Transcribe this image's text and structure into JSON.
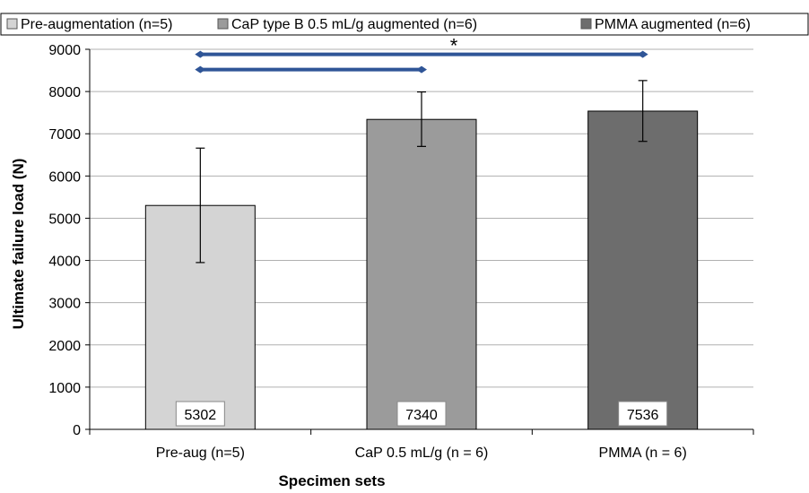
{
  "chart_data": {
    "type": "bar",
    "categories": [
      "Pre-aug (n=5)",
      "CaP 0.5 mL/g (n = 6)",
      "PMMA (n = 6)"
    ],
    "series": [
      {
        "values": [
          5302,
          7340,
          7536
        ],
        "error_low": [
          3950,
          6700,
          6820
        ],
        "error_high": [
          6660,
          7990,
          8260
        ],
        "colors": [
          "#d4d4d4",
          "#9b9b9b",
          "#6d6d6d"
        ]
      }
    ],
    "data_labels": [
      "5302",
      "7340",
      "7536"
    ],
    "legend": [
      {
        "name": "Pre-augmentation (n=5)",
        "color": "#d4d4d4"
      },
      {
        "name": "CaP type B 0.5 mL/g augmented (n=6)",
        "color": "#9b9b9b"
      },
      {
        "name": "PMMA augmented (n=6)",
        "color": "#6d6d6d"
      }
    ],
    "legend_position": "top",
    "xlabel": "Specimen sets",
    "ylabel": "Ultimate failure load (N)",
    "ylim": [
      0,
      9000
    ],
    "yticks": [
      0,
      1000,
      2000,
      3000,
      4000,
      5000,
      6000,
      7000,
      8000,
      9000
    ],
    "grid": true,
    "significance": {
      "symbol": "*",
      "brackets": [
        {
          "from": 0,
          "to": 2,
          "y": 8880
        },
        {
          "from": 0,
          "to": 1,
          "y": 8520
        }
      ],
      "color": "#2f5597"
    }
  }
}
